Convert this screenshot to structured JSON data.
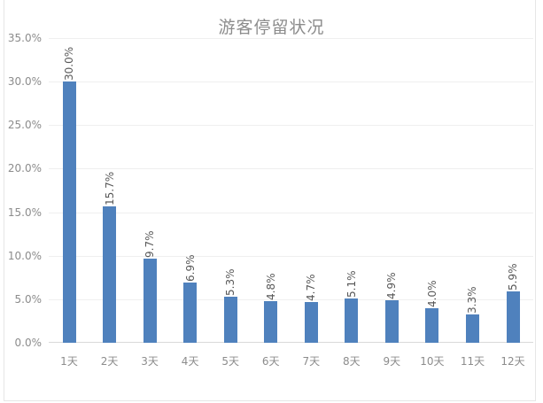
{
  "chart_data": {
    "type": "bar",
    "title": "游客停留状况",
    "xlabel": "",
    "ylabel": "",
    "categories": [
      "1天",
      "2天",
      "3天",
      "4天",
      "5天",
      "6天",
      "7天",
      "8天",
      "9天",
      "10天",
      "11天",
      "12天"
    ],
    "values": [
      30.0,
      15.7,
      9.7,
      6.9,
      5.3,
      4.8,
      4.7,
      5.1,
      4.9,
      4.0,
      3.3,
      5.9
    ],
    "value_labels": [
      "30.0%",
      "15.7%",
      "9.7%",
      "6.9%",
      "5.3%",
      "4.8%",
      "4.7%",
      "5.1%",
      "4.9%",
      "4.0%",
      "3.3%",
      "5.9%"
    ],
    "ylim": [
      0,
      35
    ],
    "yticks": [
      "0.0%",
      "5.0%",
      "10.0%",
      "15.0%",
      "20.0%",
      "25.0%",
      "30.0%",
      "35.0%"
    ],
    "ytick_values": [
      0,
      5,
      10,
      15,
      20,
      25,
      30,
      35
    ],
    "grid": true,
    "legend": "none",
    "bar_color": "#4F81BD"
  }
}
